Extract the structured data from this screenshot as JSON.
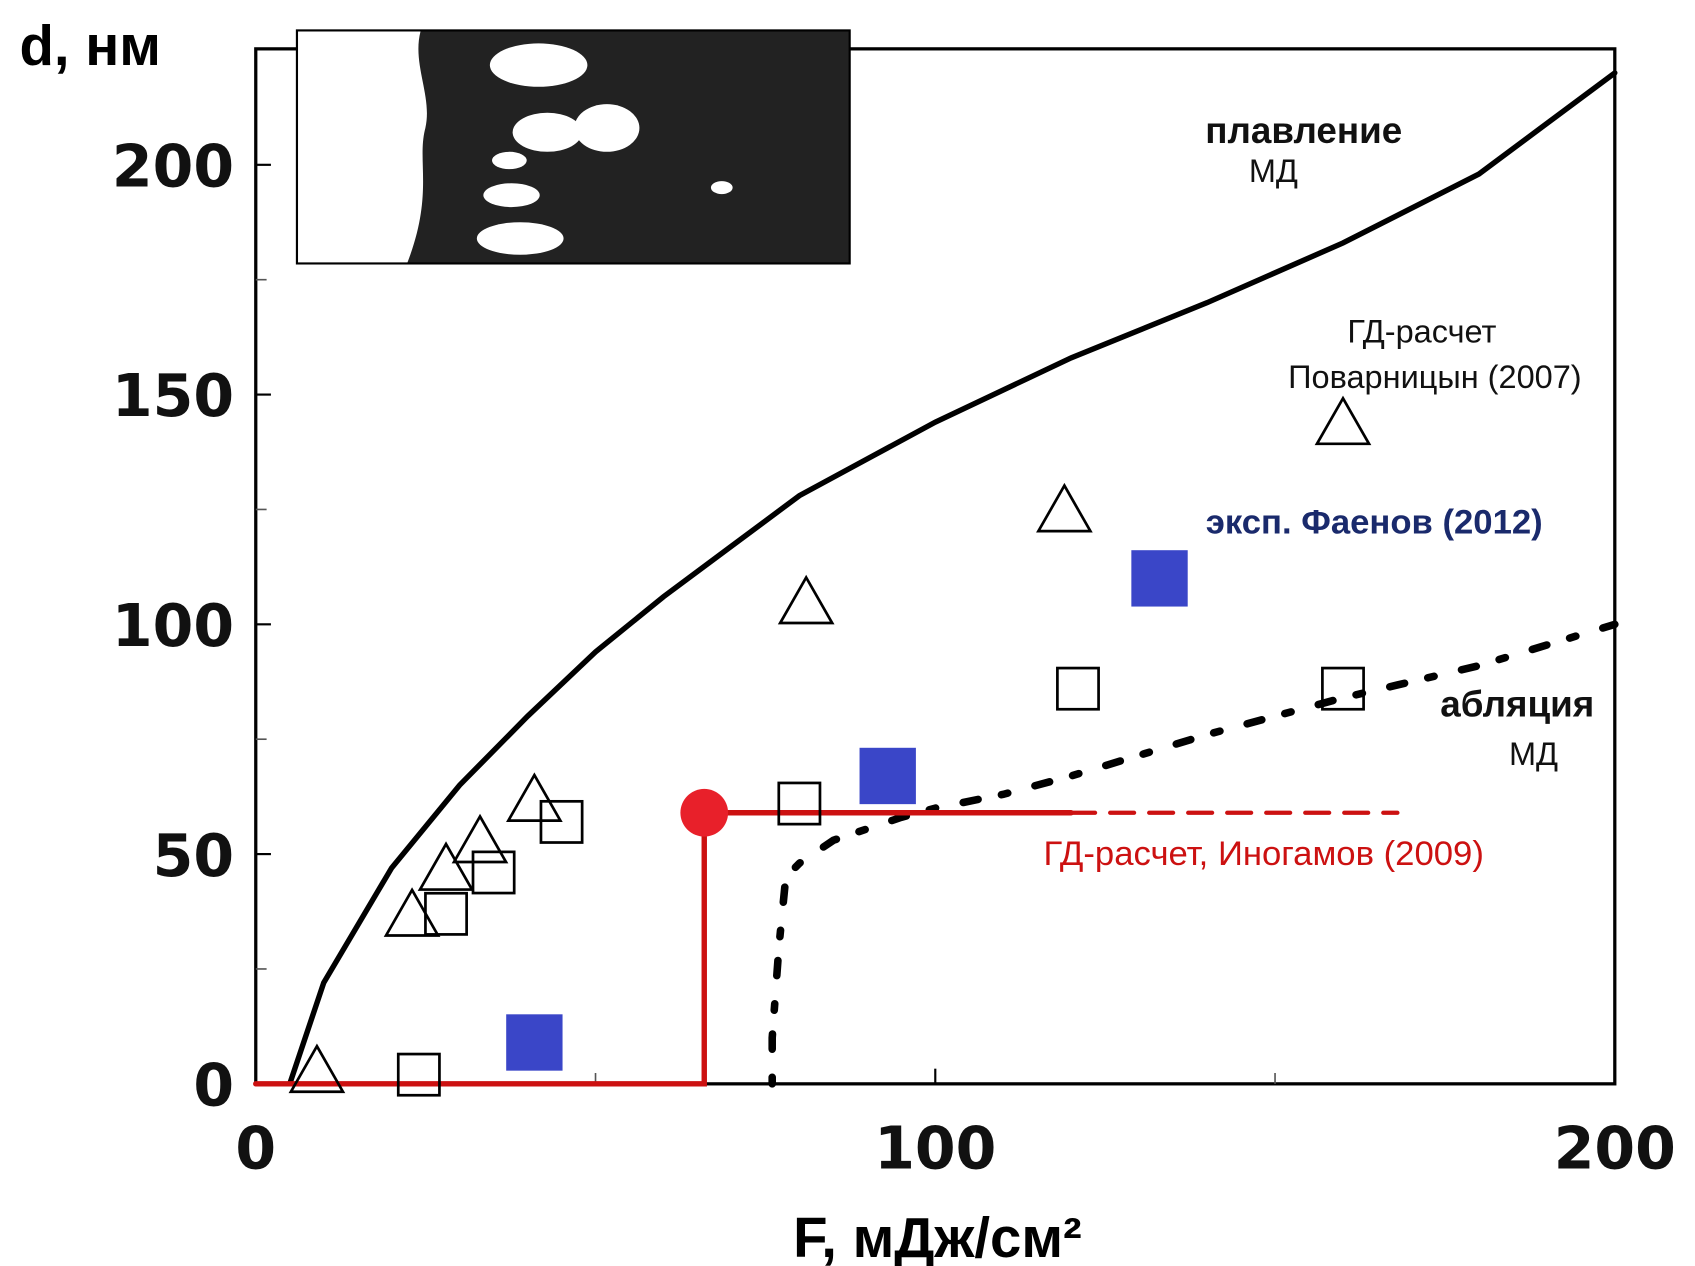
{
  "chart_data": {
    "type": "line",
    "y_label": "d, нм",
    "x_label": "F,  мДж/см²",
    "xlim": [
      0,
      200
    ],
    "ylim": [
      0,
      225
    ],
    "xticks": [
      0,
      100,
      200
    ],
    "yticks": [
      0,
      50,
      100,
      150,
      200
    ],
    "x_minor_ticks": [
      50,
      150
    ],
    "y_minor_ticks": [
      25,
      75,
      125,
      175
    ],
    "annotations": [
      "плавление",
      "МД",
      "ГД-расчет",
      "Поварницын (2007)",
      "эксп. Фаенов (2012)",
      "абляция",
      "МД",
      "ГД-расчет, Иногамов (2009)"
    ],
    "series": [
      {
        "style": "solid",
        "color": "#000000",
        "x": [
          5,
          10,
          20,
          30,
          40,
          50,
          60,
          70,
          80,
          90,
          100,
          120,
          140,
          160,
          180,
          200
        ],
        "values": [
          0,
          22,
          47,
          65,
          80,
          94,
          106,
          117,
          128,
          136,
          144,
          158,
          170,
          183,
          198,
          220
        ]
      },
      {
        "style": "dotted",
        "color": "#000000",
        "x": [
          76,
          76,
          77,
          78,
          80,
          85,
          95,
          100,
          110,
          120,
          140,
          160,
          180,
          200
        ],
        "values": [
          0,
          10,
          30,
          45,
          48,
          53,
          58,
          60,
          63,
          67,
          76,
          84,
          91,
          100
        ]
      },
      {
        "style": "solid",
        "color": "#cc1111",
        "x": [
          0,
          66,
          66,
          120
        ],
        "values": [
          0,
          0,
          59,
          59
        ]
      },
      {
        "style": "dashed",
        "color": "#cc1111",
        "x": [
          120,
          168
        ],
        "values": [
          59,
          59
        ]
      },
      {
        "style": "triangle",
        "color": "#000000",
        "x": [
          9,
          23,
          28,
          33,
          41,
          81,
          119,
          160
        ],
        "values": [
          3,
          37,
          47,
          53,
          62,
          105,
          125,
          144
        ]
      },
      {
        "style": "square",
        "color": "#000000",
        "x": [
          24,
          28,
          35,
          45,
          80,
          121,
          160
        ],
        "values": [
          2,
          37,
          46,
          57,
          61,
          86,
          86
        ]
      },
      {
        "style": "filled-square",
        "color": "#3a46c8",
        "x": [
          41,
          93,
          133
        ],
        "values": [
          9,
          67,
          110
        ]
      },
      {
        "style": "circle",
        "color": "#e8202a",
        "x": [
          66
        ],
        "values": [
          59
        ]
      }
    ]
  }
}
